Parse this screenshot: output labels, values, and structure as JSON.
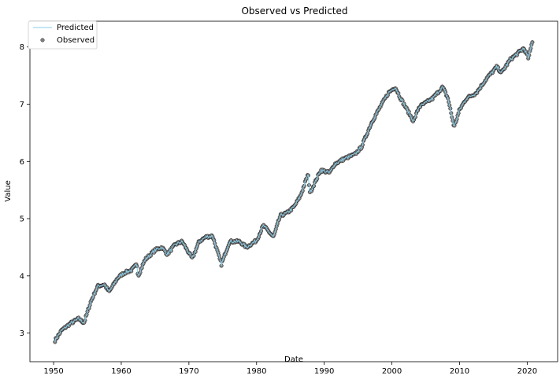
{
  "chart_data": {
    "type": "line",
    "title": "Observed vs Predicted",
    "xlabel": "Date",
    "ylabel": "Value",
    "xlim": [
      1946.5,
      2024.5
    ],
    "ylim": [
      2.5,
      8.45
    ],
    "x_ticks": [
      "1950",
      "1960",
      "1970",
      "1980",
      "1990",
      "2000",
      "2010",
      "2020"
    ],
    "y_ticks": [
      "3",
      "4",
      "5",
      "6",
      "7",
      "8"
    ],
    "grid": false,
    "legend": {
      "position": "top-left",
      "entries": [
        "Predicted",
        "Observed"
      ]
    },
    "colors": {
      "predicted": "#87ceeb",
      "observed": "#808080",
      "observed_edge": "#000000"
    },
    "anchors": {
      "x": [
        1950.2,
        1951.2,
        1952.5,
        1953.7,
        1954.5,
        1955.5,
        1956.5,
        1957.5,
        1958.2,
        1959.5,
        1960.4,
        1961.5,
        1962.3,
        1962.5,
        1963.5,
        1965.0,
        1966.0,
        1966.8,
        1968.0,
        1969.0,
        1970.5,
        1971.5,
        1972.5,
        1973.5,
        1974.8,
        1976.0,
        1977.5,
        1978.5,
        1980.0,
        1981.0,
        1982.5,
        1983.5,
        1984.5,
        1985.5,
        1986.5,
        1987.6,
        1987.9,
        1988.5,
        1989.5,
        1990.8,
        1991.5,
        1993.0,
        1994.5,
        1995.5,
        1997.0,
        1998.5,
        1999.5,
        2000.5,
        2001.3,
        2002.5,
        2003.2,
        2004.0,
        2006.0,
        2007.5,
        2008.3,
        2009.2,
        2010.0,
        2011.0,
        2012.5,
        2014.0,
        2015.5,
        2016.2,
        2017.5,
        2018.5,
        2019.5,
        2020.2,
        2020.8
      ],
      "y": [
        2.87,
        3.05,
        3.17,
        3.25,
        3.18,
        3.55,
        3.82,
        3.85,
        3.72,
        3.97,
        4.05,
        4.1,
        4.2,
        4.0,
        4.28,
        4.45,
        4.5,
        4.38,
        4.55,
        4.6,
        4.3,
        4.6,
        4.68,
        4.7,
        4.2,
        4.6,
        4.6,
        4.5,
        4.62,
        4.88,
        4.68,
        5.05,
        5.1,
        5.2,
        5.4,
        5.78,
        5.45,
        5.6,
        5.85,
        5.8,
        5.95,
        6.05,
        6.12,
        6.25,
        6.68,
        7.0,
        7.2,
        7.3,
        7.1,
        6.85,
        6.7,
        6.95,
        7.1,
        7.3,
        7.1,
        6.6,
        6.9,
        7.1,
        7.2,
        7.45,
        7.65,
        7.55,
        7.78,
        7.88,
        7.98,
        7.8,
        8.12
      ]
    }
  }
}
